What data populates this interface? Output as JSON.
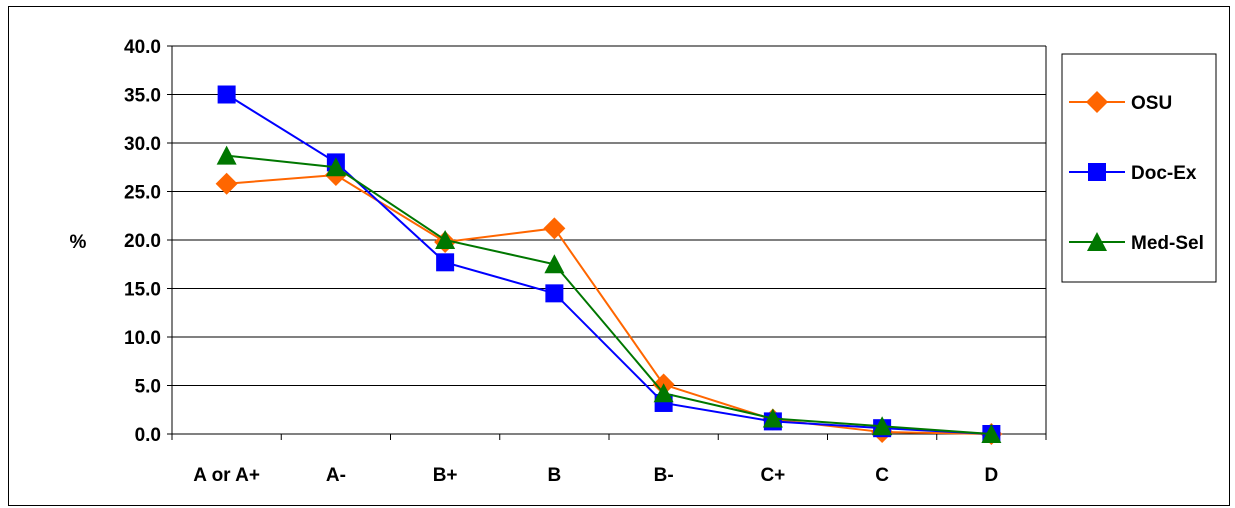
{
  "chart_data": {
    "type": "line",
    "title": "",
    "xlabel": "",
    "ylabel": "%",
    "ylim": [
      0,
      40
    ],
    "ytick_step": 5,
    "ytick_labels": [
      "0.0",
      "5.0",
      "10.0",
      "15.0",
      "20.0",
      "25.0",
      "30.0",
      "35.0",
      "40.0"
    ],
    "categories": [
      "A or A+",
      "A-",
      "B+",
      "B",
      "B-",
      "C+",
      "C",
      "D"
    ],
    "grid": true,
    "legend": "right",
    "series": [
      {
        "name": "OSU",
        "color": "#ff6600",
        "marker": "diamond",
        "values": [
          25.8,
          26.7,
          19.8,
          21.2,
          5.1,
          1.5,
          0.2,
          0.0
        ]
      },
      {
        "name": "Doc-Ex",
        "color": "#0000ff",
        "marker": "square",
        "values": [
          35.0,
          28.0,
          17.7,
          14.5,
          3.2,
          1.3,
          0.6,
          0.0
        ]
      },
      {
        "name": "Med-Sel",
        "color": "#007700",
        "marker": "triangle",
        "values": [
          28.7,
          27.5,
          20.0,
          17.5,
          4.2,
          1.6,
          0.8,
          0.0
        ]
      }
    ]
  }
}
